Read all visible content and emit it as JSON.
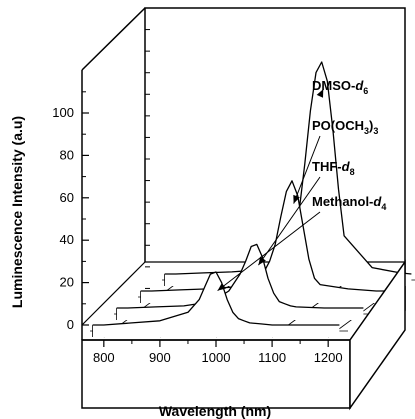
{
  "chart_data": {
    "type": "line",
    "style": "3d-waterfall",
    "xlabel": "Wavelength (nm)",
    "ylabel": "Luminescence Intensity (a.u)",
    "x_ticks": [
      "800",
      "900",
      "1000",
      "1100",
      "1200"
    ],
    "y_ticks": [
      "0",
      "20",
      "40",
      "60",
      "80",
      "100"
    ],
    "xlim": [
      770,
      1230
    ],
    "ylim": [
      0,
      130
    ],
    "grid": true,
    "series": [
      {
        "name": "DMSO-d6",
        "label_main": "DMSO-",
        "label_italic": "d",
        "label_sub": "6",
        "depth": 3,
        "x": [
          780,
          800,
          850,
          900,
          950,
          980,
          1000,
          1010,
          1020,
          1030,
          1040,
          1050,
          1060,
          1070,
          1080,
          1090,
          1100,
          1150,
          1200,
          1220
        ],
        "values": [
          0,
          0,
          0.5,
          1,
          2,
          5,
          10,
          16,
          30,
          52,
          77,
          95,
          100,
          91,
          68,
          40,
          18,
          3,
          0.5,
          0
        ]
      },
      {
        "name": "PO(OCH3)3",
        "label_main": "PO(OCH",
        "label_italic": "",
        "label_sub": "3",
        "label_tail": ")",
        "label_sub2": "3",
        "depth": 2,
        "x": [
          780,
          800,
          850,
          900,
          950,
          980,
          1000,
          1010,
          1020,
          1030,
          1040,
          1050,
          1060,
          1070,
          1080,
          1090,
          1100,
          1150,
          1200,
          1220
        ],
        "values": [
          0,
          0,
          0.5,
          1,
          2,
          4,
          9,
          14,
          22,
          35,
          47,
          52,
          45,
          30,
          15,
          6,
          3,
          1,
          0,
          0
        ]
      },
      {
        "name": "THF-d8",
        "label_main": "THF-",
        "label_italic": "d",
        "label_sub": "8",
        "depth": 1,
        "x": [
          780,
          800,
          850,
          900,
          950,
          980,
          1000,
          1010,
          1020,
          1030,
          1040,
          1050,
          1060,
          1070,
          1080,
          1090,
          1100,
          1150,
          1200,
          1220
        ],
        "values": [
          0,
          0,
          0.5,
          1,
          3,
          8,
          16,
          22,
          29,
          30,
          24,
          14,
          7,
          3,
          2,
          1,
          0.5,
          0,
          0,
          0
        ]
      },
      {
        "name": "Methanol-d4",
        "label_main": "Methanol-",
        "label_italic": "d",
        "label_sub": "4",
        "depth": 0,
        "x": [
          780,
          800,
          850,
          900,
          950,
          970,
          980,
          990,
          1000,
          1010,
          1020,
          1030,
          1040,
          1050,
          1060,
          1080,
          1100,
          1150,
          1200,
          1220
        ],
        "values": [
          0,
          0,
          1,
          2,
          6,
          12,
          18,
          24,
          25,
          20,
          12,
          6,
          3,
          2,
          1,
          0.5,
          0,
          0,
          0,
          0
        ]
      }
    ]
  }
}
